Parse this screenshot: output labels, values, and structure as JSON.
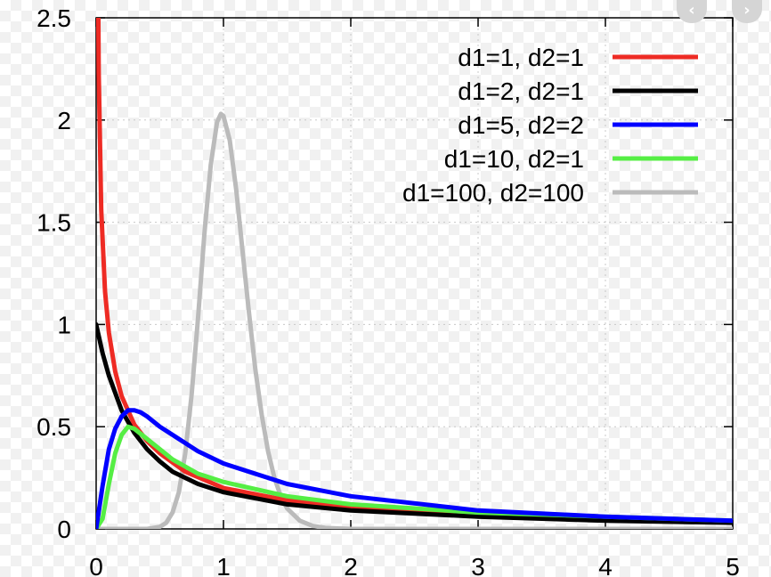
{
  "chart_data": {
    "type": "line",
    "title": "",
    "xlabel": "",
    "ylabel": "",
    "xlim": [
      0,
      5
    ],
    "ylim": [
      0,
      2.5
    ],
    "x_ticks": [
      0,
      1,
      2,
      3,
      4,
      5
    ],
    "x_tick_labels": [
      "0",
      "1",
      "2",
      "3",
      "4",
      "5"
    ],
    "y_ticks": [
      0,
      0.5,
      1,
      1.5,
      2,
      2.5
    ],
    "y_tick_labels": [
      "0",
      "0.5",
      "1",
      "1.5",
      "2",
      "2.5"
    ],
    "grid": "dashed",
    "legend_position": "top-right",
    "series": [
      {
        "name": "d1=1, d2=1",
        "color": "#ee2b24",
        "x": [
          0.01,
          0.02,
          0.04,
          0.07,
          0.1,
          0.15,
          0.2,
          0.3,
          0.4,
          0.5,
          0.7,
          1.0,
          1.5,
          2.0,
          3.0,
          4.0,
          5.0
        ],
        "y": [
          3.17,
          2.23,
          1.56,
          1.16,
          0.96,
          0.77,
          0.65,
          0.51,
          0.43,
          0.37,
          0.28,
          0.2,
          0.14,
          0.1,
          0.07,
          0.05,
          0.04
        ]
      },
      {
        "name": "d1=2, d2=1",
        "color": "#000000",
        "x": [
          0,
          0.05,
          0.1,
          0.2,
          0.3,
          0.4,
          0.5,
          0.6,
          0.8,
          1.0,
          1.5,
          2.0,
          3.0,
          4.0,
          5.0
        ],
        "y": [
          1.0,
          0.86,
          0.75,
          0.58,
          0.47,
          0.39,
          0.33,
          0.28,
          0.22,
          0.18,
          0.12,
          0.09,
          0.06,
          0.04,
          0.03
        ]
      },
      {
        "name": "d1=5, d2=2",
        "color": "#0000ff",
        "x": [
          0,
          0.05,
          0.1,
          0.15,
          0.2,
          0.25,
          0.3,
          0.35,
          0.4,
          0.5,
          0.6,
          0.8,
          1.0,
          1.5,
          2.0,
          3.0,
          4.0,
          5.0
        ],
        "y": [
          0,
          0.21,
          0.39,
          0.49,
          0.55,
          0.58,
          0.58,
          0.57,
          0.55,
          0.5,
          0.46,
          0.38,
          0.32,
          0.22,
          0.16,
          0.09,
          0.06,
          0.04
        ]
      },
      {
        "name": "d1=10, d2=1",
        "color": "#55ee44",
        "x": [
          0,
          0.05,
          0.1,
          0.15,
          0.2,
          0.25,
          0.3,
          0.4,
          0.5,
          0.6,
          0.8,
          1.0,
          1.5,
          2.0,
          3.0,
          4.0,
          5.0
        ],
        "y": [
          0,
          0.05,
          0.22,
          0.37,
          0.46,
          0.5,
          0.49,
          0.44,
          0.39,
          0.34,
          0.27,
          0.23,
          0.16,
          0.12,
          0.08,
          0.06,
          0.04
        ]
      },
      {
        "name": "d1=100, d2=100",
        "color": "#bbbbbb",
        "x": [
          0,
          0.4,
          0.5,
          0.55,
          0.6,
          0.65,
          0.7,
          0.75,
          0.8,
          0.85,
          0.9,
          0.95,
          0.98,
          1.0,
          1.05,
          1.1,
          1.15,
          1.2,
          1.25,
          1.3,
          1.35,
          1.4,
          1.45,
          1.5,
          1.6,
          1.7,
          1.8,
          1.9,
          2.0,
          5.0
        ],
        "y": [
          0,
          0,
          0.01,
          0.03,
          0.08,
          0.18,
          0.37,
          0.66,
          1.03,
          1.44,
          1.78,
          1.99,
          2.03,
          2.02,
          1.9,
          1.66,
          1.36,
          1.06,
          0.78,
          0.56,
          0.38,
          0.25,
          0.16,
          0.1,
          0.04,
          0.015,
          0.005,
          0.002,
          0,
          0
        ]
      }
    ]
  },
  "ui": {
    "prev_symbol": "‹",
    "next_symbol": "›"
  }
}
